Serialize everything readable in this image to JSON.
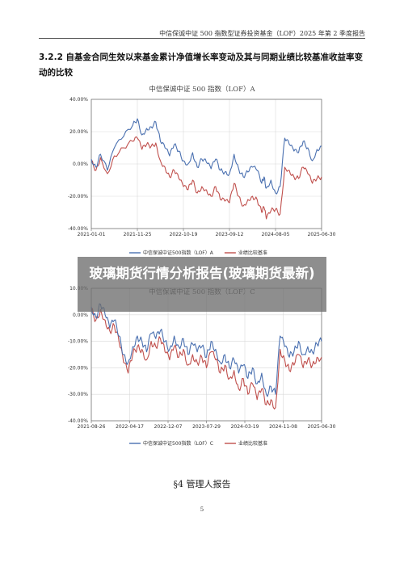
{
  "header": {
    "running_title": "中信保诚中证 500 指数型证券投资基金（LOF）2025 年第 2 季度报告"
  },
  "section": {
    "title": "3.2.2 自基金合同生效以来基金累计净值增长率变动及其与同期业绩比较基准收益率变动的比较"
  },
  "overlay": {
    "text": "玻璃期货行情分析报告(玻璃期货最新)"
  },
  "footer": {
    "section_heading": "§4  管理人报告",
    "page_number": "5"
  },
  "colors": {
    "fund": "#4a70b0",
    "benchmark": "#c0504d",
    "grid": "#d9d9d9",
    "axis": "#666666"
  },
  "chart_data": [
    {
      "type": "line",
      "title": "中信保诚中证 500 指数（LOF）A",
      "x_ticks": [
        "2021-01-01",
        "2021-11-25",
        "2022-10-19",
        "2023-09-12",
        "2024-08-05",
        "2025-06-30"
      ],
      "y_ticks": [
        "40.00%",
        "20.00%",
        "0.00%",
        "-20.00%",
        "-40.00%"
      ],
      "ylim": [
        -40,
        40
      ],
      "grid": true,
      "legend_position": "bottom",
      "series": [
        {
          "name": "中信保诚中证500指数（LOF）A",
          "color": "#4a70b0",
          "x": [
            0,
            0.02,
            0.04,
            0.07,
            0.1,
            0.14,
            0.18,
            0.2,
            0.22,
            0.24,
            0.26,
            0.28,
            0.3,
            0.32,
            0.34,
            0.36,
            0.38,
            0.4,
            0.42,
            0.44,
            0.46,
            0.48,
            0.5,
            0.52,
            0.54,
            0.56,
            0.58,
            0.6,
            0.62,
            0.64,
            0.66,
            0.68,
            0.7,
            0.72,
            0.74,
            0.75,
            0.76,
            0.78,
            0.8,
            0.82,
            0.84,
            0.86,
            0.88,
            0.9,
            0.92,
            0.94,
            0.96,
            0.98,
            1.0
          ],
          "y": [
            3,
            -2,
            6,
            -4,
            10,
            17,
            24,
            28,
            18,
            22,
            23,
            26,
            14,
            10,
            5,
            12,
            8,
            2,
            0,
            7,
            -2,
            3,
            1,
            -3,
            3,
            -4,
            -5,
            -6,
            6,
            -3,
            -8,
            -5,
            -2,
            -4,
            -12,
            -8,
            -15,
            -10,
            -18,
            -14,
            16,
            12,
            8,
            7,
            14,
            10,
            2,
            9,
            11
          ]
        },
        {
          "name": "业绩比较基准",
          "color": "#c0504d",
          "x": [
            0,
            0.02,
            0.04,
            0.07,
            0.1,
            0.14,
            0.18,
            0.2,
            0.22,
            0.24,
            0.26,
            0.28,
            0.3,
            0.32,
            0.34,
            0.36,
            0.38,
            0.4,
            0.42,
            0.44,
            0.46,
            0.48,
            0.5,
            0.52,
            0.54,
            0.56,
            0.58,
            0.6,
            0.62,
            0.64,
            0.66,
            0.68,
            0.7,
            0.72,
            0.74,
            0.75,
            0.76,
            0.78,
            0.8,
            0.82,
            0.84,
            0.86,
            0.88,
            0.9,
            0.92,
            0.94,
            0.96,
            0.98,
            1.0
          ],
          "y": [
            2,
            -4,
            4,
            -6,
            5,
            10,
            14,
            16,
            9,
            12,
            11,
            13,
            2,
            -2,
            -8,
            -4,
            -9,
            -14,
            -16,
            -10,
            -18,
            -14,
            -16,
            -20,
            -14,
            -22,
            -23,
            -24,
            -12,
            -20,
            -26,
            -22,
            -20,
            -22,
            -30,
            -27,
            -34,
            -29,
            -28,
            -31,
            -2,
            -4,
            -8,
            -9,
            -2,
            -6,
            -12,
            -9,
            -8
          ]
        }
      ]
    },
    {
      "type": "line",
      "title": "中信保诚中证 500 指数（LOF）C",
      "x_ticks": [
        "2021-08-26",
        "2022-04-17",
        "2022-12-07",
        "2023-07-29",
        "2024-03-19",
        "2024-11-08",
        "2025-06-30"
      ],
      "y_ticks": [
        "10.00%",
        "0.00%",
        "-10.00%",
        "-20.00%",
        "-30.00%",
        "-40.00%"
      ],
      "ylim": [
        -40,
        10
      ],
      "grid": true,
      "legend_position": "bottom",
      "series": [
        {
          "name": "中信保诚中证500指数（LOF）C",
          "color": "#4a70b0",
          "x": [
            0,
            0.02,
            0.04,
            0.06,
            0.08,
            0.1,
            0.12,
            0.14,
            0.16,
            0.18,
            0.2,
            0.22,
            0.24,
            0.26,
            0.28,
            0.3,
            0.32,
            0.34,
            0.36,
            0.38,
            0.4,
            0.42,
            0.44,
            0.46,
            0.48,
            0.5,
            0.52,
            0.54,
            0.56,
            0.58,
            0.6,
            0.62,
            0.64,
            0.66,
            0.68,
            0.7,
            0.72,
            0.74,
            0.76,
            0.78,
            0.8,
            0.82,
            0.84,
            0.86,
            0.88,
            0.9,
            0.92,
            0.94,
            0.96,
            0.98,
            1.0
          ],
          "y": [
            3,
            -1,
            4,
            0,
            -5,
            -2,
            -8,
            -15,
            -18,
            -12,
            -8,
            -10,
            -14,
            -7,
            -9,
            -6,
            -10,
            -13,
            -8,
            -12,
            -9,
            -15,
            -11,
            -14,
            -12,
            -16,
            -10,
            -13,
            -18,
            -15,
            -20,
            -17,
            -22,
            -19,
            -24,
            -20,
            -26,
            -22,
            -30,
            -27,
            -30,
            -8,
            -12,
            -16,
            -14,
            -10,
            -15,
            -12,
            -14,
            -11,
            -10
          ]
        },
        {
          "name": "业绩比较基准",
          "color": "#c0504d",
          "x": [
            0,
            0.02,
            0.04,
            0.06,
            0.08,
            0.1,
            0.12,
            0.14,
            0.16,
            0.18,
            0.2,
            0.22,
            0.24,
            0.26,
            0.28,
            0.3,
            0.32,
            0.34,
            0.36,
            0.38,
            0.4,
            0.42,
            0.44,
            0.46,
            0.48,
            0.5,
            0.52,
            0.54,
            0.56,
            0.58,
            0.6,
            0.62,
            0.64,
            0.66,
            0.68,
            0.7,
            0.72,
            0.74,
            0.76,
            0.78,
            0.8,
            0.82,
            0.84,
            0.86,
            0.88,
            0.9,
            0.92,
            0.94,
            0.96,
            0.98,
            1.0
          ],
          "y": [
            2,
            -2,
            2,
            -2,
            -6,
            -4,
            -10,
            -18,
            -22,
            -15,
            -12,
            -13,
            -17,
            -10,
            -12,
            -9,
            -14,
            -17,
            -12,
            -16,
            -13,
            -19,
            -15,
            -18,
            -16,
            -20,
            -14,
            -17,
            -22,
            -19,
            -24,
            -21,
            -28,
            -24,
            -30,
            -26,
            -32,
            -28,
            -34,
            -32,
            -35,
            -13,
            -17,
            -21,
            -19,
            -15,
            -20,
            -17,
            -19,
            -16,
            -16
          ]
        }
      ]
    }
  ]
}
